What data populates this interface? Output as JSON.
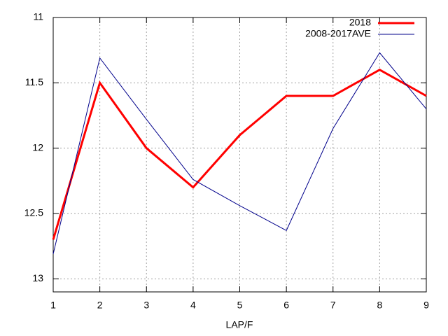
{
  "chart_data": {
    "type": "line",
    "x_label": "LAP/F",
    "x": [
      1,
      2,
      3,
      4,
      5,
      6,
      7,
      8,
      9
    ],
    "series": [
      {
        "name": "2018",
        "color": "#ff0000",
        "width": 3,
        "values": [
          12.7,
          11.5,
          12.0,
          12.3,
          11.9,
          11.6,
          11.6,
          11.4,
          11.6
        ]
      },
      {
        "name": "2008-2017AVE",
        "color": "#00008b",
        "width": 1,
        "values": [
          12.81,
          11.31,
          11.78,
          12.24,
          12.44,
          12.63,
          11.85,
          11.27,
          11.7
        ]
      }
    ],
    "xlim": [
      1,
      9
    ],
    "xticks": [
      1,
      2,
      3,
      4,
      5,
      6,
      7,
      8,
      9
    ],
    "ylim": [
      11,
      13.1
    ],
    "yticks": [
      11,
      11.5,
      12,
      12.5,
      13
    ],
    "y_reversed": true,
    "grid": true,
    "legend": "top-right"
  }
}
